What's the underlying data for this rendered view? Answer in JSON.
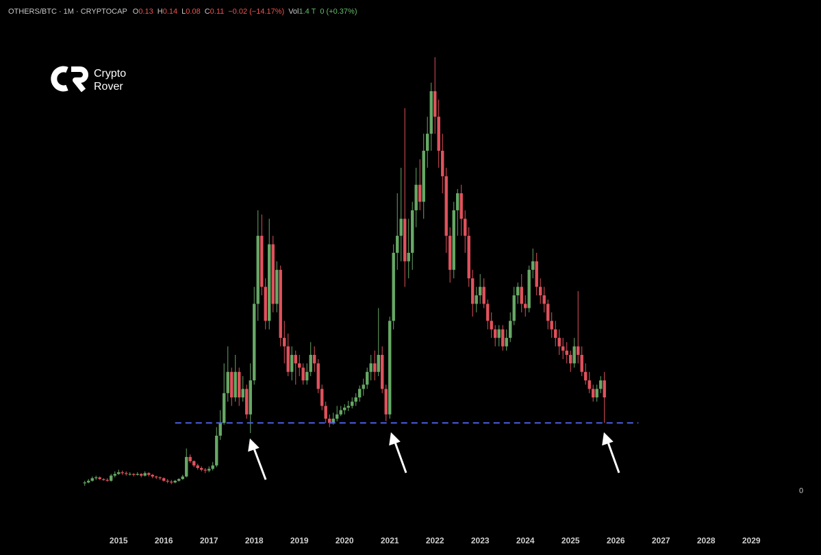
{
  "chart_data": {
    "type": "candlestick",
    "header": {
      "symbol": "OTHERS/BTC · 1M · CRYPTOCAP",
      "ohlc": [
        {
          "label": "O",
          "value": "0.13"
        },
        {
          "label": "H",
          "value": "0.14"
        },
        {
          "label": "L",
          "value": "0.08"
        },
        {
          "label": "C",
          "value": "0.11"
        }
      ],
      "change": "−0.02 (−14.17%)",
      "volume_label": "Vol",
      "volume": "1.4 T",
      "volume_change": "0 (+0.37%)"
    },
    "watermark": [
      "Crypto",
      "Rover"
    ],
    "up_color": "#66a865",
    "down_color": "#e0525c",
    "x": [
      2014.25,
      2014.333,
      2014.417,
      2014.5,
      2014.583,
      2014.667,
      2014.75,
      2014.833,
      2014.917,
      2015.0,
      2015.083,
      2015.167,
      2015.25,
      2015.333,
      2015.417,
      2015.5,
      2015.583,
      2015.667,
      2015.75,
      2015.833,
      2015.917,
      2016.0,
      2016.083,
      2016.167,
      2016.25,
      2016.333,
      2016.417,
      2016.5,
      2016.583,
      2016.667,
      2016.75,
      2016.833,
      2016.917,
      2017.0,
      2017.083,
      2017.167,
      2017.25,
      2017.333,
      2017.417,
      2017.5,
      2017.583,
      2017.667,
      2017.75,
      2017.833,
      2017.917,
      2018.0,
      2018.083,
      2018.167,
      2018.25,
      2018.333,
      2018.417,
      2018.5,
      2018.583,
      2018.667,
      2018.75,
      2018.833,
      2018.917,
      2019.0,
      2019.083,
      2019.167,
      2019.25,
      2019.333,
      2019.417,
      2019.5,
      2019.583,
      2019.667,
      2019.75,
      2019.833,
      2019.917,
      2020.0,
      2020.083,
      2020.167,
      2020.25,
      2020.333,
      2020.417,
      2020.5,
      2020.583,
      2020.667,
      2020.75,
      2020.833,
      2020.917,
      2021.0,
      2021.083,
      2021.167,
      2021.25,
      2021.333,
      2021.417,
      2021.5,
      2021.583,
      2021.667,
      2021.75,
      2021.833,
      2021.917,
      2022.0,
      2022.083,
      2022.167,
      2022.25,
      2022.333,
      2022.417,
      2022.5,
      2022.583,
      2022.667,
      2022.75,
      2022.833,
      2022.917,
      2023.0,
      2023.083,
      2023.167,
      2023.25,
      2023.333,
      2023.417,
      2023.5,
      2023.583,
      2023.667,
      2023.75,
      2023.833,
      2023.917,
      2024.0,
      2024.083,
      2024.167,
      2024.25,
      2024.333,
      2024.417,
      2024.5,
      2024.583,
      2024.667,
      2024.75,
      2024.833,
      2024.917,
      2025.0,
      2025.083,
      2025.167,
      2025.25,
      2025.333,
      2025.417,
      2025.5,
      2025.583,
      2025.667,
      2025.75
    ],
    "open": [
      0.009,
      0.01,
      0.012,
      0.015,
      0.016,
      0.014,
      0.013,
      0.012,
      0.018,
      0.02,
      0.022,
      0.021,
      0.02,
      0.02,
      0.019,
      0.02,
      0.018,
      0.021,
      0.019,
      0.017,
      0.016,
      0.015,
      0.012,
      0.011,
      0.01,
      0.012,
      0.014,
      0.017,
      0.04,
      0.035,
      0.03,
      0.027,
      0.025,
      0.024,
      0.026,
      0.03,
      0.065,
      0.08,
      0.115,
      0.14,
      0.11,
      0.14,
      0.11,
      0.12,
      0.09,
      0.13,
      0.22,
      0.3,
      0.24,
      0.2,
      0.29,
      0.22,
      0.26,
      0.18,
      0.17,
      0.14,
      0.16,
      0.15,
      0.145,
      0.13,
      0.14,
      0.16,
      0.15,
      0.12,
      0.1,
      0.085,
      0.08,
      0.085,
      0.09,
      0.095,
      0.098,
      0.1,
      0.105,
      0.11,
      0.12,
      0.125,
      0.14,
      0.15,
      0.14,
      0.16,
      0.12,
      0.09,
      0.2,
      0.28,
      0.3,
      0.32,
      0.27,
      0.28,
      0.33,
      0.36,
      0.34,
      0.4,
      0.42,
      0.47,
      0.44,
      0.4,
      0.37,
      0.3,
      0.26,
      0.33,
      0.35,
      0.32,
      0.3,
      0.25,
      0.22,
      0.23,
      0.24,
      0.22,
      0.2,
      0.19,
      0.18,
      0.19,
      0.17,
      0.18,
      0.2,
      0.23,
      0.24,
      0.22,
      0.215,
      0.26,
      0.27,
      0.24,
      0.23,
      0.22,
      0.2,
      0.19,
      0.18,
      0.17,
      0.165,
      0.16,
      0.15,
      0.17,
      0.16,
      0.14,
      0.13,
      0.12,
      0.11,
      0.12,
      0.13
    ],
    "high": [
      0.012,
      0.014,
      0.017,
      0.018,
      0.017,
      0.015,
      0.015,
      0.02,
      0.023,
      0.025,
      0.024,
      0.023,
      0.022,
      0.021,
      0.022,
      0.021,
      0.023,
      0.022,
      0.02,
      0.018,
      0.017,
      0.016,
      0.014,
      0.013,
      0.013,
      0.015,
      0.019,
      0.05,
      0.043,
      0.036,
      0.032,
      0.029,
      0.027,
      0.029,
      0.034,
      0.075,
      0.095,
      0.15,
      0.17,
      0.145,
      0.16,
      0.145,
      0.135,
      0.125,
      0.15,
      0.24,
      0.33,
      0.325,
      0.25,
      0.32,
      0.3,
      0.27,
      0.265,
      0.2,
      0.185,
      0.17,
      0.165,
      0.16,
      0.15,
      0.15,
      0.175,
      0.17,
      0.155,
      0.125,
      0.105,
      0.09,
      0.092,
      0.1,
      0.1,
      0.102,
      0.106,
      0.11,
      0.115,
      0.124,
      0.132,
      0.145,
      0.16,
      0.165,
      0.215,
      0.17,
      0.125,
      0.205,
      0.29,
      0.35,
      0.38,
      0.45,
      0.32,
      0.34,
      0.38,
      0.39,
      0.42,
      0.44,
      0.48,
      0.51,
      0.46,
      0.42,
      0.38,
      0.31,
      0.34,
      0.355,
      0.36,
      0.33,
      0.31,
      0.26,
      0.24,
      0.255,
      0.25,
      0.225,
      0.21,
      0.195,
      0.195,
      0.195,
      0.19,
      0.21,
      0.24,
      0.245,
      0.255,
      0.23,
      0.265,
      0.285,
      0.28,
      0.25,
      0.24,
      0.225,
      0.21,
      0.2,
      0.19,
      0.18,
      0.175,
      0.165,
      0.18,
      0.235,
      0.17,
      0.15,
      0.14,
      0.125,
      0.125,
      0.135,
      0.14
    ],
    "low": [
      0.006,
      0.009,
      0.011,
      0.013,
      0.013,
      0.012,
      0.011,
      0.011,
      0.016,
      0.019,
      0.019,
      0.018,
      0.018,
      0.017,
      0.018,
      0.016,
      0.017,
      0.017,
      0.015,
      0.014,
      0.013,
      0.011,
      0.009,
      0.008,
      0.009,
      0.011,
      0.013,
      0.016,
      0.033,
      0.028,
      0.025,
      0.023,
      0.021,
      0.022,
      0.024,
      0.028,
      0.06,
      0.078,
      0.105,
      0.1,
      0.105,
      0.1,
      0.105,
      0.085,
      0.068,
      0.125,
      0.2,
      0.23,
      0.19,
      0.19,
      0.21,
      0.21,
      0.17,
      0.15,
      0.135,
      0.13,
      0.125,
      0.135,
      0.125,
      0.125,
      0.135,
      0.14,
      0.115,
      0.095,
      0.08,
      0.075,
      0.078,
      0.082,
      0.088,
      0.09,
      0.094,
      0.097,
      0.1,
      0.105,
      0.112,
      0.12,
      0.13,
      0.13,
      0.135,
      0.115,
      0.082,
      0.085,
      0.19,
      0.26,
      0.27,
      0.24,
      0.25,
      0.26,
      0.31,
      0.33,
      0.32,
      0.38,
      0.4,
      0.42,
      0.38,
      0.35,
      0.28,
      0.245,
      0.25,
      0.3,
      0.3,
      0.28,
      0.24,
      0.205,
      0.21,
      0.22,
      0.215,
      0.19,
      0.18,
      0.17,
      0.17,
      0.165,
      0.165,
      0.175,
      0.195,
      0.22,
      0.21,
      0.205,
      0.21,
      0.25,
      0.23,
      0.22,
      0.21,
      0.19,
      0.18,
      0.17,
      0.16,
      0.155,
      0.15,
      0.14,
      0.145,
      0.15,
      0.135,
      0.125,
      0.115,
      0.105,
      0.105,
      0.115,
      0.08
    ],
    "close": [
      0.01,
      0.012,
      0.015,
      0.016,
      0.014,
      0.013,
      0.012,
      0.018,
      0.02,
      0.022,
      0.021,
      0.02,
      0.02,
      0.019,
      0.02,
      0.018,
      0.021,
      0.019,
      0.017,
      0.016,
      0.015,
      0.012,
      0.011,
      0.01,
      0.012,
      0.014,
      0.017,
      0.04,
      0.035,
      0.03,
      0.027,
      0.025,
      0.024,
      0.026,
      0.03,
      0.065,
      0.08,
      0.115,
      0.14,
      0.11,
      0.14,
      0.11,
      0.12,
      0.09,
      0.13,
      0.22,
      0.3,
      0.24,
      0.2,
      0.29,
      0.22,
      0.26,
      0.18,
      0.17,
      0.14,
      0.16,
      0.15,
      0.145,
      0.13,
      0.14,
      0.16,
      0.15,
      0.12,
      0.1,
      0.085,
      0.08,
      0.085,
      0.09,
      0.095,
      0.098,
      0.1,
      0.105,
      0.11,
      0.12,
      0.125,
      0.14,
      0.15,
      0.14,
      0.16,
      0.12,
      0.09,
      0.2,
      0.28,
      0.3,
      0.32,
      0.27,
      0.28,
      0.33,
      0.36,
      0.34,
      0.4,
      0.42,
      0.47,
      0.44,
      0.4,
      0.37,
      0.3,
      0.26,
      0.33,
      0.35,
      0.32,
      0.3,
      0.25,
      0.22,
      0.23,
      0.24,
      0.22,
      0.2,
      0.19,
      0.18,
      0.19,
      0.17,
      0.18,
      0.2,
      0.23,
      0.24,
      0.22,
      0.215,
      0.26,
      0.27,
      0.24,
      0.23,
      0.22,
      0.2,
      0.19,
      0.18,
      0.17,
      0.165,
      0.16,
      0.15,
      0.17,
      0.16,
      0.14,
      0.13,
      0.12,
      0.11,
      0.12,
      0.13,
      0.11
    ],
    "xlim": [
      2012.375,
      2029.8
    ],
    "xticks": [
      2015,
      2016,
      2017,
      2018,
      2019,
      2020,
      2021,
      2022,
      2023,
      2024,
      2025,
      2026,
      2027,
      2028,
      2029
    ],
    "ylim": [
      -0.035,
      0.545
    ],
    "yticks": [
      0
    ],
    "hline": {
      "y": 0.08,
      "x": [
        2016.25,
        2026.5
      ],
      "color": "#4b5fe6"
    }
  }
}
